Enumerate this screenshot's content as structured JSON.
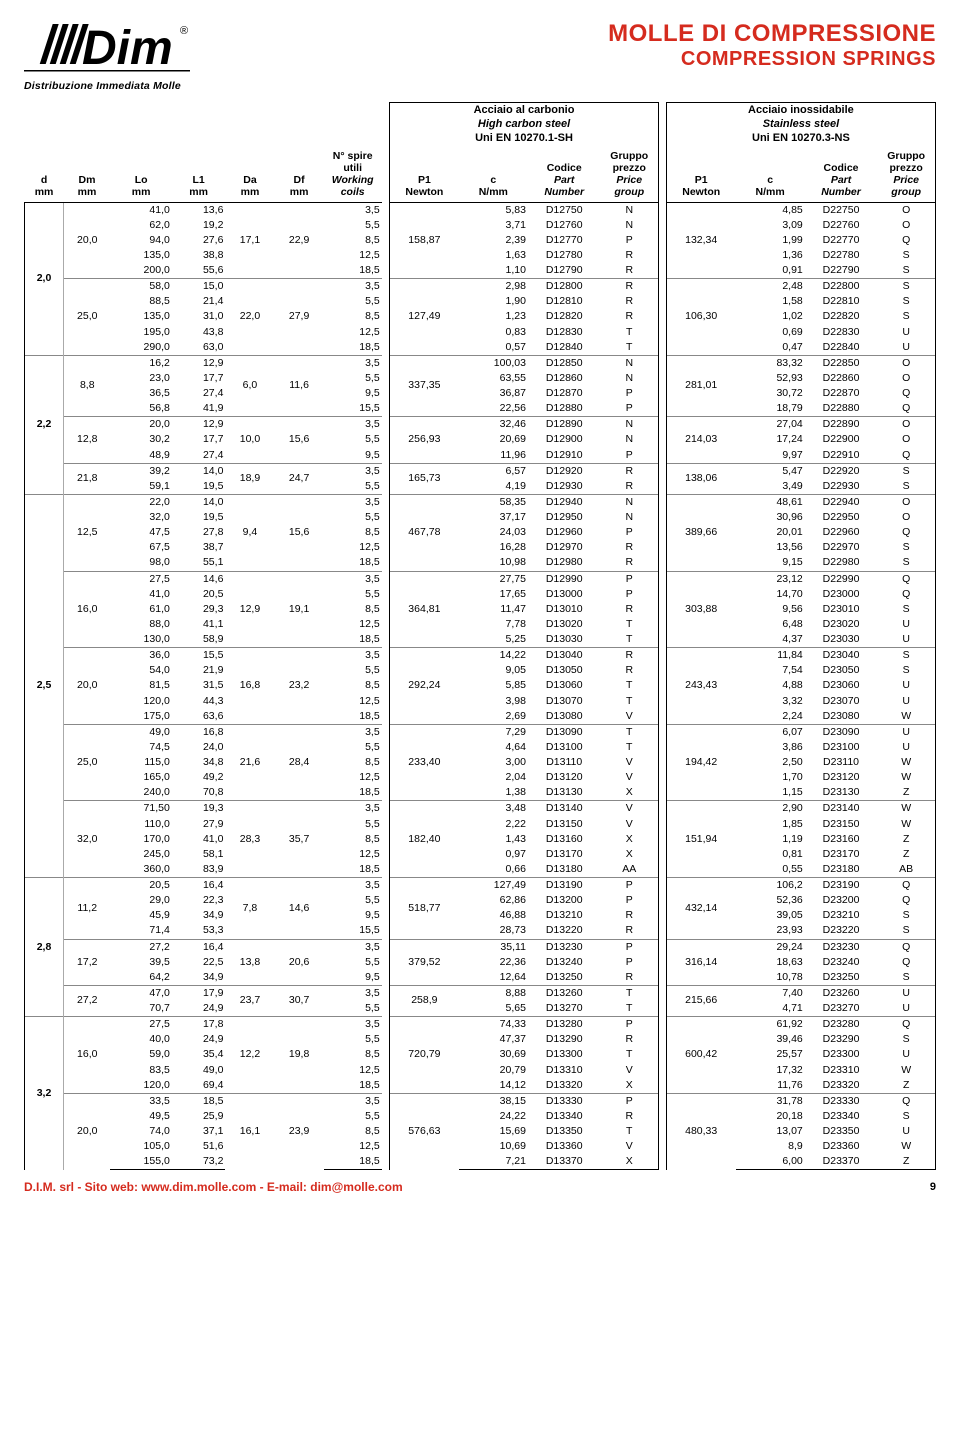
{
  "brand": {
    "tagline": "Distribuzione Immediata Molle",
    "trademark": "®"
  },
  "titles": {
    "l1": "MOLLE DI COMPRESSIONE",
    "l2": "COMPRESSION SPRINGS"
  },
  "materials": {
    "hc": {
      "l1": "Acciaio al carbonio",
      "l2": "High carbon steel",
      "l3": "Uni EN 10270.1-SH"
    },
    "ss": {
      "l1": "Acciaio inossidabile",
      "l2": "Stainless steel",
      "l3": "Uni EN 10270.3-NS"
    }
  },
  "columns": {
    "d": {
      "h": "d",
      "u": "mm"
    },
    "Dm": {
      "h": "Dm",
      "u": "mm"
    },
    "Lo": {
      "h": "Lo",
      "u": "mm"
    },
    "L1": {
      "h": "L1",
      "u": "mm"
    },
    "Da": {
      "h": "Da",
      "u": "mm"
    },
    "Df": {
      "h": "Df",
      "u": "mm"
    },
    "N": {
      "h1": "N° spire",
      "h2": "utili",
      "h3": "Working",
      "h4": "coils"
    },
    "P1": {
      "h": "P1",
      "u": "Newton"
    },
    "c": {
      "h": "c",
      "u": "N/mm"
    },
    "Code": {
      "h1": "Codice",
      "h2": "Part",
      "h3": "Number"
    },
    "Group": {
      "h1": "Gruppo",
      "h2": "prezzo",
      "h3": "Price",
      "h4": "group"
    }
  },
  "footer": {
    "text": "D.I.M. srl - Sito web: www.dim.molle.com - E-mail: dim@molle.com",
    "page": "9"
  },
  "colors": {
    "accent": "#d52b1e"
  },
  "rows": [
    {
      "g": 1,
      "d": "2,0",
      "Dm": "20,0",
      "Lo": "41,0",
      "L1": "13,6",
      "Da": "",
      "Df": "",
      "N": "3,5",
      "P1a": "",
      "ca": "5,83",
      "Cda": "D12750",
      "Ga": "N",
      "P1b": "",
      "cb": "4,85",
      "Cdb": "D22750",
      "Gb": "O"
    },
    {
      "g": 1,
      "Lo": "62,0",
      "L1": "19,2",
      "N": "5,5",
      "ca": "3,71",
      "Cda": "D12760",
      "Ga": "N",
      "cb": "3,09",
      "Cdb": "D22760",
      "Gb": "O"
    },
    {
      "g": 1,
      "Lo": "94,0",
      "L1": "27,6",
      "Da": "17,1",
      "Df": "22,9",
      "N": "8,5",
      "P1a": "158,87",
      "ca": "2,39",
      "Cda": "D12770",
      "Ga": "P",
      "P1b": "132,34",
      "cb": "1,99",
      "Cdb": "D22770",
      "Gb": "Q"
    },
    {
      "g": 1,
      "Lo": "135,0",
      "L1": "38,8",
      "N": "12,5",
      "ca": "1,63",
      "Cda": "D12780",
      "Ga": "R",
      "cb": "1,36",
      "Cdb": "D22780",
      "Gb": "S"
    },
    {
      "g": 1,
      "Lo": "200,0",
      "L1": "55,6",
      "N": "18,5",
      "ca": "1,10",
      "Cda": "D12790",
      "Ga": "R",
      "cb": "0,91",
      "Cdb": "D22790",
      "Gb": "S"
    },
    {
      "g": 2,
      "Dm": "25,0",
      "Lo": "58,0",
      "L1": "15,0",
      "N": "3,5",
      "ca": "2,98",
      "Cda": "D12800",
      "Ga": "R",
      "cb": "2,48",
      "Cdb": "D22800",
      "Gb": "S"
    },
    {
      "g": 2,
      "Lo": "88,5",
      "L1": "21,4",
      "N": "5,5",
      "ca": "1,90",
      "Cda": "D12810",
      "Ga": "R",
      "cb": "1,58",
      "Cdb": "D22810",
      "Gb": "S"
    },
    {
      "g": 2,
      "Lo": "135,0",
      "L1": "31,0",
      "Da": "22,0",
      "Df": "27,9",
      "N": "8,5",
      "P1a": "127,49",
      "ca": "1,23",
      "Cda": "D12820",
      "Ga": "R",
      "P1b": "106,30",
      "cb": "1,02",
      "Cdb": "D22820",
      "Gb": "S"
    },
    {
      "g": 2,
      "Lo": "195,0",
      "L1": "43,8",
      "N": "12,5",
      "ca": "0,83",
      "Cda": "D12830",
      "Ga": "T",
      "cb": "0,69",
      "Cdb": "D22830",
      "Gb": "U"
    },
    {
      "g": 2,
      "Lo": "290,0",
      "L1": "63,0",
      "N": "18,5",
      "ca": "0,57",
      "Cda": "D12840",
      "Ga": "T",
      "cb": "0,47",
      "Cdb": "D22840",
      "Gb": "U"
    },
    {
      "g": 3,
      "d": "2,2",
      "Dm": "8,8",
      "Lo": "16,2",
      "L1": "12,9",
      "N": "3,5",
      "ca": "100,03",
      "Cda": "D12850",
      "Ga": "N",
      "cb": "83,32",
      "Cdb": "D22850",
      "Gb": "O"
    },
    {
      "g": 3,
      "Lo": "23,0",
      "L1": "17,7",
      "Da": "6,0",
      "Df": "11,6",
      "N": "5,5",
      "P1a": "337,35",
      "ca": "63,55",
      "Cda": "D12860",
      "Ga": "N",
      "P1b": "281,01",
      "cb": "52,93",
      "Cdb": "D22860",
      "Gb": "O"
    },
    {
      "g": 3,
      "Lo": "36,5",
      "L1": "27,4",
      "N": "9,5",
      "ca": "36,87",
      "Cda": "D12870",
      "Ga": "P",
      "cb": "30,72",
      "Cdb": "D22870",
      "Gb": "Q"
    },
    {
      "g": 3,
      "Lo": "56,8",
      "L1": "41,9",
      "N": "15,5",
      "ca": "22,56",
      "Cda": "D12880",
      "Ga": "P",
      "cb": "18,79",
      "Cdb": "D22880",
      "Gb": "Q"
    },
    {
      "g": 4,
      "Dm": "12,8",
      "Lo": "20,0",
      "L1": "12,9",
      "N": "3,5",
      "ca": "32,46",
      "Cda": "D12890",
      "Ga": "N",
      "cb": "27,04",
      "Cdb": "D22890",
      "Gb": "O"
    },
    {
      "g": 4,
      "Lo": "30,2",
      "L1": "17,7",
      "Da": "10,0",
      "Df": "15,6",
      "N": "5,5",
      "P1a": "256,93",
      "ca": "20,69",
      "Cda": "D12900",
      "Ga": "N",
      "P1b": "214,03",
      "cb": "17,24",
      "Cdb": "D22900",
      "Gb": "O"
    },
    {
      "g": 4,
      "Lo": "48,9",
      "L1": "27,4",
      "N": "9,5",
      "ca": "11,96",
      "Cda": "D12910",
      "Ga": "P",
      "cb": "9,97",
      "Cdb": "D22910",
      "Gb": "Q"
    },
    {
      "g": 5,
      "Dm": "21,8",
      "Lo": "39,2",
      "L1": "14,0",
      "Da": "18,9",
      "Df": "24,7",
      "N": "3,5",
      "P1a": "165,73",
      "ca": "6,57",
      "Cda": "D12920",
      "Ga": "R",
      "P1b": "138,06",
      "cb": "5,47",
      "Cdb": "D22920",
      "Gb": "S"
    },
    {
      "g": 5,
      "Lo": "59,1",
      "L1": "19,5",
      "N": "5,5",
      "ca": "4,19",
      "Cda": "D12930",
      "Ga": "R",
      "cb": "3,49",
      "Cdb": "D22930",
      "Gb": "S"
    },
    {
      "g": 6,
      "d": "2,5",
      "Dm": "12,5",
      "Lo": "22,0",
      "L1": "14,0",
      "N": "3,5",
      "ca": "58,35",
      "Cda": "D12940",
      "Ga": "N",
      "cb": "48,61",
      "Cdb": "D22940",
      "Gb": "O"
    },
    {
      "g": 6,
      "Lo": "32,0",
      "L1": "19,5",
      "N": "5,5",
      "ca": "37,17",
      "Cda": "D12950",
      "Ga": "N",
      "cb": "30,96",
      "Cdb": "D22950",
      "Gb": "O"
    },
    {
      "g": 6,
      "Lo": "47,5",
      "L1": "27,8",
      "Da": "9,4",
      "Df": "15,6",
      "N": "8,5",
      "P1a": "467,78",
      "ca": "24,03",
      "Cda": "D12960",
      "Ga": "P",
      "P1b": "389,66",
      "cb": "20,01",
      "Cdb": "D22960",
      "Gb": "Q"
    },
    {
      "g": 6,
      "Lo": "67,5",
      "L1": "38,7",
      "N": "12,5",
      "ca": "16,28",
      "Cda": "D12970",
      "Ga": "R",
      "cb": "13,56",
      "Cdb": "D22970",
      "Gb": "S"
    },
    {
      "g": 6,
      "Lo": "98,0",
      "L1": "55,1",
      "N": "18,5",
      "ca": "10,98",
      "Cda": "D12980",
      "Ga": "R",
      "cb": "9,15",
      "Cdb": "D22980",
      "Gb": "S"
    },
    {
      "g": 7,
      "Dm": "16,0",
      "Lo": "27,5",
      "L1": "14,6",
      "N": "3,5",
      "ca": "27,75",
      "Cda": "D12990",
      "Ga": "P",
      "cb": "23,12",
      "Cdb": "D22990",
      "Gb": "Q"
    },
    {
      "g": 7,
      "Lo": "41,0",
      "L1": "20,5",
      "N": "5,5",
      "ca": "17,65",
      "Cda": "D13000",
      "Ga": "P",
      "cb": "14,70",
      "Cdb": "D23000",
      "Gb": "Q"
    },
    {
      "g": 7,
      "Lo": "61,0",
      "L1": "29,3",
      "Da": "12,9",
      "Df": "19,1",
      "N": "8,5",
      "P1a": "364,81",
      "ca": "11,47",
      "Cda": "D13010",
      "Ga": "R",
      "P1b": "303,88",
      "cb": "9,56",
      "Cdb": "D23010",
      "Gb": "S"
    },
    {
      "g": 7,
      "Lo": "88,0",
      "L1": "41,1",
      "N": "12,5",
      "ca": "7,78",
      "Cda": "D13020",
      "Ga": "T",
      "cb": "6,48",
      "Cdb": "D23020",
      "Gb": "U"
    },
    {
      "g": 7,
      "Lo": "130,0",
      "L1": "58,9",
      "N": "18,5",
      "ca": "5,25",
      "Cda": "D13030",
      "Ga": "T",
      "cb": "4,37",
      "Cdb": "D23030",
      "Gb": "U"
    },
    {
      "g": 8,
      "Dm": "20,0",
      "Lo": "36,0",
      "L1": "15,5",
      "N": "3,5",
      "ca": "14,22",
      "Cda": "D13040",
      "Ga": "R",
      "cb": "11,84",
      "Cdb": "D23040",
      "Gb": "S"
    },
    {
      "g": 8,
      "Lo": "54,0",
      "L1": "21,9",
      "N": "5,5",
      "ca": "9,05",
      "Cda": "D13050",
      "Ga": "R",
      "cb": "7,54",
      "Cdb": "D23050",
      "Gb": "S"
    },
    {
      "g": 8,
      "Lo": "81,5",
      "L1": "31,5",
      "Da": "16,8",
      "Df": "23,2",
      "N": "8,5",
      "P1a": "292,24",
      "ca": "5,85",
      "Cda": "D13060",
      "Ga": "T",
      "P1b": "243,43",
      "cb": "4,88",
      "Cdb": "D23060",
      "Gb": "U"
    },
    {
      "g": 8,
      "Lo": "120,0",
      "L1": "44,3",
      "N": "12,5",
      "ca": "3,98",
      "Cda": "D13070",
      "Ga": "T",
      "cb": "3,32",
      "Cdb": "D23070",
      "Gb": "U"
    },
    {
      "g": 8,
      "Lo": "175,0",
      "L1": "63,6",
      "N": "18,5",
      "ca": "2,69",
      "Cda": "D13080",
      "Ga": "V",
      "cb": "2,24",
      "Cdb": "D23080",
      "Gb": "W"
    },
    {
      "g": 9,
      "Dm": "25,0",
      "Lo": "49,0",
      "L1": "16,8",
      "N": "3,5",
      "ca": "7,29",
      "Cda": "D13090",
      "Ga": "T",
      "cb": "6,07",
      "Cdb": "D23090",
      "Gb": "U"
    },
    {
      "g": 9,
      "Lo": "74,5",
      "L1": "24,0",
      "N": "5,5",
      "ca": "4,64",
      "Cda": "D13100",
      "Ga": "T",
      "cb": "3,86",
      "Cdb": "D23100",
      "Gb": "U"
    },
    {
      "g": 9,
      "Lo": "115,0",
      "L1": "34,8",
      "Da": "21,6",
      "Df": "28,4",
      "N": "8,5",
      "P1a": "233,40",
      "ca": "3,00",
      "Cda": "D13110",
      "Ga": "V",
      "P1b": "194,42",
      "cb": "2,50",
      "Cdb": "D23110",
      "Gb": "W"
    },
    {
      "g": 9,
      "Lo": "165,0",
      "L1": "49,2",
      "N": "12,5",
      "ca": "2,04",
      "Cda": "D13120",
      "Ga": "V",
      "cb": "1,70",
      "Cdb": "D23120",
      "Gb": "W"
    },
    {
      "g": 9,
      "Lo": "240,0",
      "L1": "70,8",
      "N": "18,5",
      "ca": "1,38",
      "Cda": "D13130",
      "Ga": "X",
      "cb": "1,15",
      "Cdb": "D23130",
      "Gb": "Z"
    },
    {
      "g": 10,
      "Dm": "32,0",
      "Lo": "71,50",
      "L1": "19,3",
      "N": "3,5",
      "ca": "3,48",
      "Cda": "D13140",
      "Ga": "V",
      "cb": "2,90",
      "Cdb": "D23140",
      "Gb": "W"
    },
    {
      "g": 10,
      "Lo": "110,0",
      "L1": "27,9",
      "N": "5,5",
      "ca": "2,22",
      "Cda": "D13150",
      "Ga": "V",
      "cb": "1,85",
      "Cdb": "D23150",
      "Gb": "W"
    },
    {
      "g": 10,
      "Lo": "170,0",
      "L1": "41,0",
      "Da": "28,3",
      "Df": "35,7",
      "N": "8,5",
      "P1a": "182,40",
      "ca": "1,43",
      "Cda": "D13160",
      "Ga": "X",
      "P1b": "151,94",
      "cb": "1,19",
      "Cdb": "D23160",
      "Gb": "Z"
    },
    {
      "g": 10,
      "Lo": "245,0",
      "L1": "58,1",
      "N": "12,5",
      "ca": "0,97",
      "Cda": "D13170",
      "Ga": "X",
      "cb": "0,81",
      "Cdb": "D23170",
      "Gb": "Z"
    },
    {
      "g": 10,
      "Lo": "360,0",
      "L1": "83,9",
      "N": "18,5",
      "ca": "0,66",
      "Cda": "D13180",
      "Ga": "AA",
      "cb": "0,55",
      "Cdb": "D23180",
      "Gb": "AB"
    },
    {
      "g": 11,
      "d": "2,8",
      "Dm": "11,2",
      "Lo": "20,5",
      "L1": "16,4",
      "N": "3,5",
      "ca": "127,49",
      "Cda": "D13190",
      "Ga": "P",
      "cb": "106,2",
      "Cdb": "D23190",
      "Gb": "Q"
    },
    {
      "g": 11,
      "Lo": "29,0",
      "L1": "22,3",
      "N": "5,5",
      "ca": "62,86",
      "Cda": "D13200",
      "Ga": "P",
      "cb": "52,36",
      "Cdb": "D23200",
      "Gb": "Q"
    },
    {
      "g": 11,
      "Lo": "45,9",
      "L1": "34,9",
      "Da": "7,8",
      "Df": "14,6",
      "N": "9,5",
      "P1a": "518,77",
      "ca": "46,88",
      "Cda": "D13210",
      "Ga": "R",
      "P1b": "432,14",
      "cb": "39,05",
      "Cdb": "D23210",
      "Gb": "S"
    },
    {
      "g": 11,
      "Lo": "71,4",
      "L1": "53,3",
      "N": "15,5",
      "ca": "28,73",
      "Cda": "D13220",
      "Ga": "R",
      "cb": "23,93",
      "Cdb": "D23220",
      "Gb": "S"
    },
    {
      "g": 12,
      "Dm": "17,2",
      "Lo": "27,2",
      "L1": "16,4",
      "N": "3,5",
      "ca": "35,11",
      "Cda": "D13230",
      "Ga": "P",
      "cb": "29,24",
      "Cdb": "D23230",
      "Gb": "Q"
    },
    {
      "g": 12,
      "Lo": "39,5",
      "L1": "22,5",
      "Da": "13,8",
      "Df": "20,6",
      "N": "5,5",
      "P1a": "379,52",
      "ca": "22,36",
      "Cda": "D13240",
      "Ga": "P",
      "P1b": "316,14",
      "cb": "18,63",
      "Cdb": "D23240",
      "Gb": "Q"
    },
    {
      "g": 12,
      "Lo": "64,2",
      "L1": "34,9",
      "N": "9,5",
      "ca": "12,64",
      "Cda": "D13250",
      "Ga": "R",
      "cb": "10,78",
      "Cdb": "D23250",
      "Gb": "S"
    },
    {
      "g": 13,
      "Dm": "27,2",
      "Lo": "47,0",
      "L1": "17,9",
      "Da": "23,7",
      "Df": "30,7",
      "N": "3,5",
      "P1a": "258,9",
      "ca": "8,88",
      "Cda": "D13260",
      "Ga": "T",
      "P1b": "215,66",
      "cb": "7,40",
      "Cdb": "D23260",
      "Gb": "U"
    },
    {
      "g": 13,
      "Lo": "70,7",
      "L1": "24,9",
      "N": "5,5",
      "ca": "5,65",
      "Cda": "D13270",
      "Ga": "T",
      "cb": "4,71",
      "Cdb": "D23270",
      "Gb": "U"
    },
    {
      "g": 14,
      "d": "3,2",
      "Dm": "16,0",
      "Lo": "27,5",
      "L1": "17,8",
      "N": "3,5",
      "ca": "74,33",
      "Cda": "D13280",
      "Ga": "P",
      "cb": "61,92",
      "Cdb": "D23280",
      "Gb": "Q"
    },
    {
      "g": 14,
      "Lo": "40,0",
      "L1": "24,9",
      "N": "5,5",
      "ca": "47,37",
      "Cda": "D13290",
      "Ga": "R",
      "cb": "39,46",
      "Cdb": "D23290",
      "Gb": "S"
    },
    {
      "g": 14,
      "Lo": "59,0",
      "L1": "35,4",
      "Da": "12,2",
      "Df": "19,8",
      "N": "8,5",
      "P1a": "720,79",
      "ca": "30,69",
      "Cda": "D13300",
      "Ga": "T",
      "P1b": "600,42",
      "cb": "25,57",
      "Cdb": "D23300",
      "Gb": "U"
    },
    {
      "g": 14,
      "Lo": "83,5",
      "L1": "49,0",
      "N": "12,5",
      "ca": "20,79",
      "Cda": "D13310",
      "Ga": "V",
      "cb": "17,32",
      "Cdb": "D23310",
      "Gb": "W"
    },
    {
      "g": 14,
      "Lo": "120,0",
      "L1": "69,4",
      "N": "18,5",
      "ca": "14,12",
      "Cda": "D13320",
      "Ga": "X",
      "cb": "11,76",
      "Cdb": "D23320",
      "Gb": "Z"
    },
    {
      "g": 15,
      "Dm": "20,0",
      "Lo": "33,5",
      "L1": "18,5",
      "N": "3,5",
      "ca": "38,15",
      "Cda": "D13330",
      "Ga": "P",
      "cb": "31,78",
      "Cdb": "D23330",
      "Gb": "Q"
    },
    {
      "g": 15,
      "Lo": "49,5",
      "L1": "25,9",
      "N": "5,5",
      "ca": "24,22",
      "Cda": "D13340",
      "Ga": "R",
      "cb": "20,18",
      "Cdb": "D23340",
      "Gb": "S"
    },
    {
      "g": 15,
      "Lo": "74,0",
      "L1": "37,1",
      "Da": "16,1",
      "Df": "23,9",
      "N": "8,5",
      "P1a": "576,63",
      "ca": "15,69",
      "Cda": "D13350",
      "Ga": "T",
      "P1b": "480,33",
      "cb": "13,07",
      "Cdb": "D23350",
      "Gb": "U"
    },
    {
      "g": 15,
      "Lo": "105,0",
      "L1": "51,6",
      "N": "12,5",
      "ca": "10,69",
      "Cda": "D13360",
      "Ga": "V",
      "cb": "8,9",
      "Cdb": "D23360",
      "Gb": "W"
    },
    {
      "g": 15,
      "Lo": "155,0",
      "L1": "73,2",
      "N": "18,5",
      "ca": "7,21",
      "Cda": "D13370",
      "Ga": "X",
      "cb": "6,00",
      "Cdb": "D23370",
      "Gb": "Z"
    }
  ],
  "layout": {
    "d_blocks": [
      {
        "d": "2,0",
        "span": 10
      },
      {
        "d": "2,2",
        "span": 9
      },
      {
        "d": "2,5",
        "span": 25
      },
      {
        "d": "2,8",
        "span": 9
      },
      {
        "d": "3,2",
        "span": 10
      }
    ],
    "Dm_blocks": [
      {
        "span": 5
      },
      {
        "span": 5
      },
      {
        "span": 4
      },
      {
        "span": 3
      },
      {
        "span": 2
      },
      {
        "span": 5
      },
      {
        "span": 5
      },
      {
        "span": 5
      },
      {
        "span": 5
      },
      {
        "span": 5
      },
      {
        "span": 4
      },
      {
        "span": 3
      },
      {
        "span": 2
      },
      {
        "span": 5
      },
      {
        "span": 5
      }
    ]
  }
}
